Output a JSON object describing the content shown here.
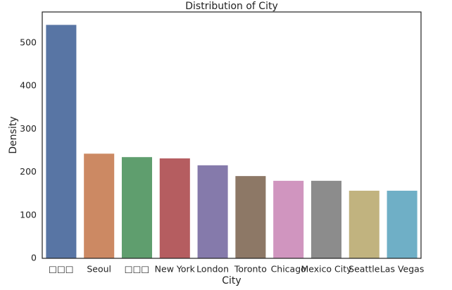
{
  "chart_data": {
    "type": "bar",
    "title": "Distribution of City",
    "x_label": "City",
    "y_label": "Density",
    "categories": [
      "□□□",
      "Seoul",
      "□□□",
      "New York",
      "London",
      "Toronto",
      "Chicago",
      "Mexico City",
      "Seattle",
      "Las Vegas"
    ],
    "values": [
      542,
      243,
      235,
      232,
      216,
      191,
      180,
      180,
      157,
      157
    ],
    "colors": [
      "#5875a4",
      "#cc8963",
      "#5f9e6e",
      "#b55d60",
      "#857aab",
      "#8d7866",
      "#d095bf",
      "#8c8c8c",
      "#c1b37f",
      "#6fafc6"
    ],
    "ylim": [
      0,
      572
    ],
    "yticks": [
      0,
      100,
      200,
      300,
      400,
      500
    ],
    "grid": false
  }
}
